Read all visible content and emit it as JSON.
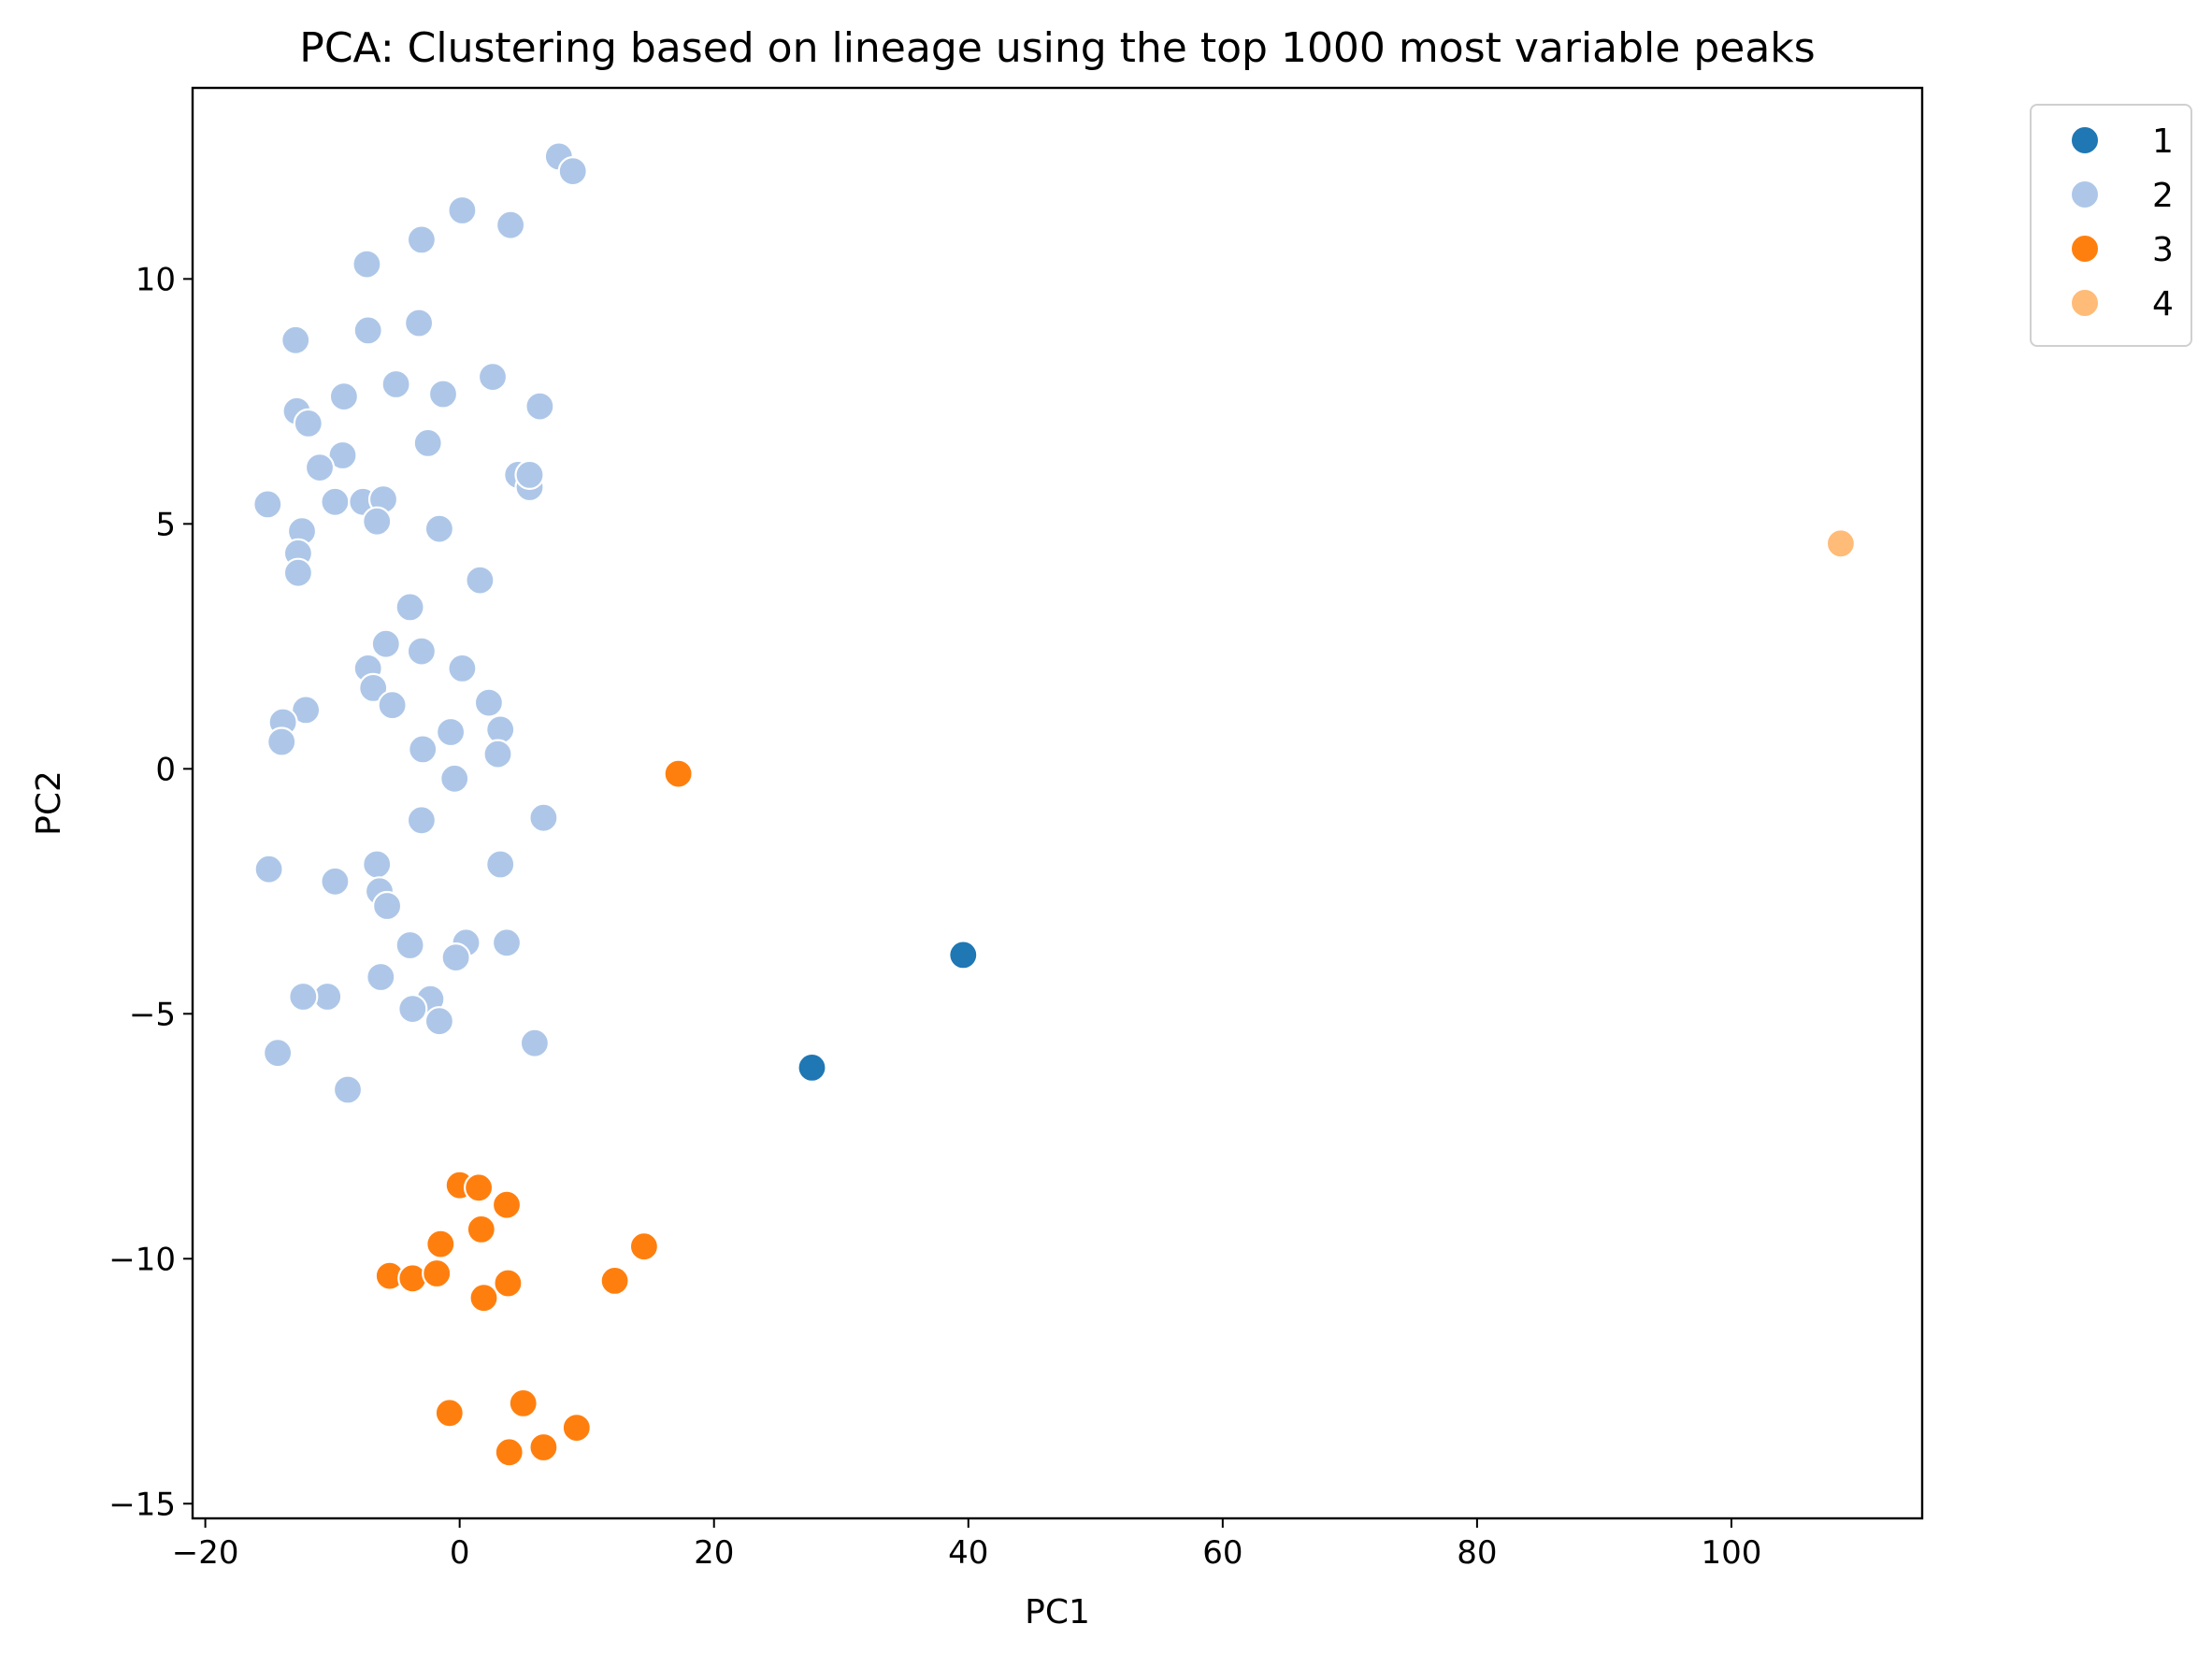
{
  "chart_data": {
    "type": "scatter",
    "title": "PCA: Clustering based on lineage using the top 1000 most variable peaks",
    "xlabel": "PC1",
    "ylabel": "PC2",
    "xlim": [
      -21,
      115
    ],
    "ylim": [
      -15.3,
      13.9
    ],
    "xticks": [
      -20,
      0,
      20,
      40,
      60,
      80,
      100
    ],
    "yticks": [
      -15,
      -10,
      -5,
      0,
      5,
      10
    ],
    "xtick_labels": [
      "−20",
      "0",
      "20",
      "40",
      "60",
      "80",
      "100"
    ],
    "ytick_labels": [
      "−15",
      "−10",
      "−5",
      "0",
      "5",
      "10"
    ],
    "grid": false,
    "legend_position": "outside-top-right",
    "series": [
      {
        "name": "1",
        "color": "#1f77b4",
        "points": [
          [
            27.7,
            -6.1
          ],
          [
            39.6,
            -3.8
          ]
        ]
      },
      {
        "name": "2",
        "color": "#aec7e8",
        "points": [
          [
            7.8,
            12.5
          ],
          [
            8.9,
            12.2
          ],
          [
            0.2,
            11.4
          ],
          [
            4.0,
            11.1
          ],
          [
            -3.0,
            10.8
          ],
          [
            -7.3,
            10.3
          ],
          [
            -3.2,
            9.1
          ],
          [
            -7.2,
            8.95
          ],
          [
            -12.9,
            8.75
          ],
          [
            2.6,
            8.0
          ],
          [
            -5.0,
            7.85
          ],
          [
            -1.3,
            7.65
          ],
          [
            -9.1,
            7.6
          ],
          [
            6.3,
            7.4
          ],
          [
            -12.8,
            7.3
          ],
          [
            -11.9,
            7.05
          ],
          [
            -2.5,
            6.65
          ],
          [
            -9.2,
            6.4
          ],
          [
            -11.0,
            6.15
          ],
          [
            4.6,
            6.0
          ],
          [
            5.5,
            5.75
          ],
          [
            5.5,
            6.0
          ],
          [
            -15.1,
            5.4
          ],
          [
            -9.8,
            5.45
          ],
          [
            -7.6,
            5.45
          ],
          [
            -6.0,
            5.5
          ],
          [
            -6.5,
            5.05
          ],
          [
            -12.4,
            4.85
          ],
          [
            -1.6,
            4.9
          ],
          [
            -12.7,
            4.4
          ],
          [
            -12.7,
            4.0
          ],
          [
            1.6,
            3.85
          ],
          [
            -3.9,
            3.3
          ],
          [
            -5.8,
            2.55
          ],
          [
            -3.0,
            2.4
          ],
          [
            0.2,
            2.05
          ],
          [
            -7.2,
            2.05
          ],
          [
            -6.8,
            1.65
          ],
          [
            -5.3,
            1.3
          ],
          [
            2.3,
            1.35
          ],
          [
            -12.1,
            1.2
          ],
          [
            -13.9,
            0.95
          ],
          [
            -14.0,
            0.55
          ],
          [
            3.2,
            0.8
          ],
          [
            -0.7,
            0.75
          ],
          [
            -2.9,
            0.4
          ],
          [
            3.0,
            0.3
          ],
          [
            -0.4,
            -0.2
          ],
          [
            6.6,
            -1.0
          ],
          [
            -3.0,
            -1.05
          ],
          [
            3.2,
            -1.95
          ],
          [
            -15.0,
            -2.05
          ],
          [
            -6.5,
            -1.95
          ],
          [
            -9.8,
            -2.3
          ],
          [
            -6.3,
            -2.5
          ],
          [
            -5.7,
            -2.8
          ],
          [
            -3.9,
            -3.6
          ],
          [
            0.5,
            -3.55
          ],
          [
            3.7,
            -3.55
          ],
          [
            -0.3,
            -3.85
          ],
          [
            -6.2,
            -4.25
          ],
          [
            -2.3,
            -4.7
          ],
          [
            -3.7,
            -4.9
          ],
          [
            -10.4,
            -4.65
          ],
          [
            -12.3,
            -4.65
          ],
          [
            -1.6,
            -5.15
          ],
          [
            5.9,
            -5.6
          ],
          [
            -14.3,
            -5.8
          ],
          [
            -8.8,
            -6.55
          ]
        ]
      },
      {
        "name": "3",
        "color": "#ff7f0e",
        "points": [
          [
            17.2,
            -0.1
          ],
          [
            0.0,
            -8.5
          ],
          [
            1.5,
            -8.55
          ],
          [
            3.7,
            -8.9
          ],
          [
            1.7,
            -9.4
          ],
          [
            -1.5,
            -9.7
          ],
          [
            14.5,
            -9.75
          ],
          [
            -5.5,
            -10.35
          ],
          [
            -3.7,
            -10.4
          ],
          [
            -1.8,
            -10.3
          ],
          [
            3.8,
            -10.5
          ],
          [
            12.2,
            -10.45
          ],
          [
            1.9,
            -10.8
          ],
          [
            5.0,
            -12.95
          ],
          [
            -0.8,
            -13.15
          ],
          [
            9.2,
            -13.45
          ],
          [
            6.6,
            -13.85
          ],
          [
            3.9,
            -13.95
          ]
        ]
      },
      {
        "name": "4",
        "color": "#ffbb78",
        "points": [
          [
            108.6,
            4.6
          ]
        ]
      }
    ]
  }
}
